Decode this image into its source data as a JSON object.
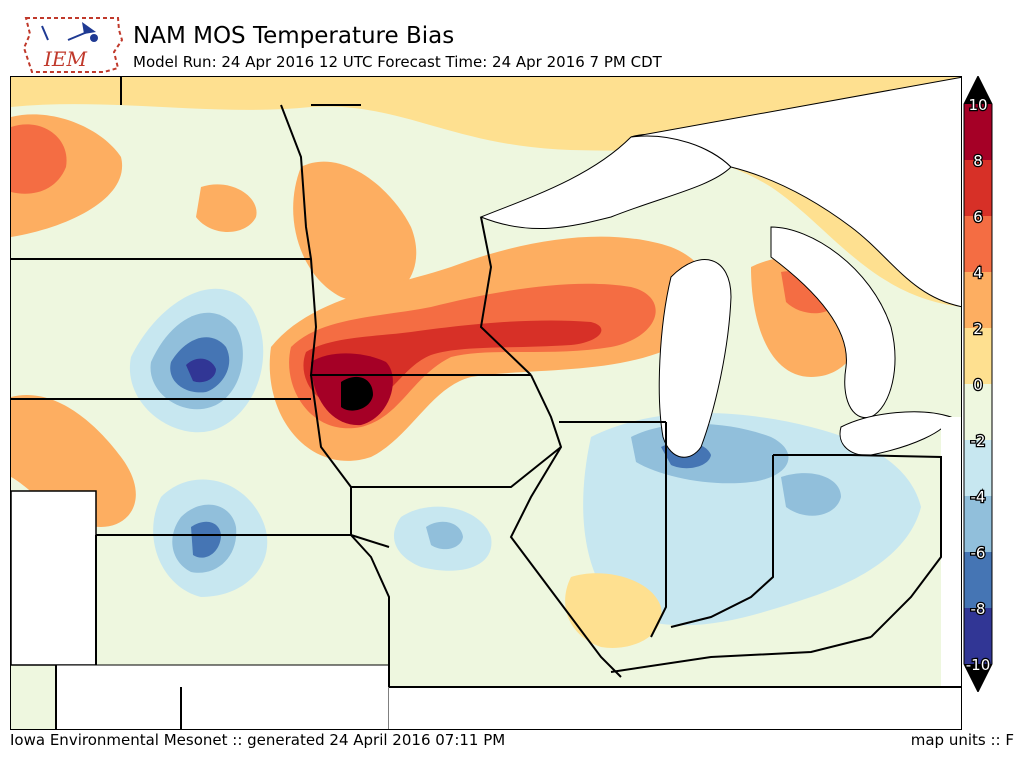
{
  "header": {
    "logo_text": "IEM",
    "title": "NAM MOS Temperature Bias",
    "subtitle": "Model Run: 24 Apr 2016 12 UTC Forecast Time: 24 Apr 2016 7 PM CDT"
  },
  "footer": {
    "left": "Iowa Environmental Mesonet :: generated 24 April 2016 07:11 PM",
    "right": "map units :: F"
  },
  "legend": {
    "labels": [
      "10",
      "8",
      "6",
      "4",
      "2",
      "0",
      "-2",
      "-4",
      "-6",
      "-8",
      "-10"
    ],
    "bins": [
      {
        "value": 9,
        "color": "#a50026"
      },
      {
        "value": 7,
        "color": "#d73027"
      },
      {
        "value": 5,
        "color": "#f46d43"
      },
      {
        "value": 3,
        "color": "#fdae61"
      },
      {
        "value": 1,
        "color": "#fee090"
      },
      {
        "value": -1,
        "color": "#eef7df"
      },
      {
        "value": -3,
        "color": "#c7e7f0"
      },
      {
        "value": -5,
        "color": "#91bfdb"
      },
      {
        "value": -7,
        "color": "#4575b4"
      },
      {
        "value": -9,
        "color": "#313695"
      }
    ],
    "over_color": "#000000",
    "under_color": "#000000"
  }
}
